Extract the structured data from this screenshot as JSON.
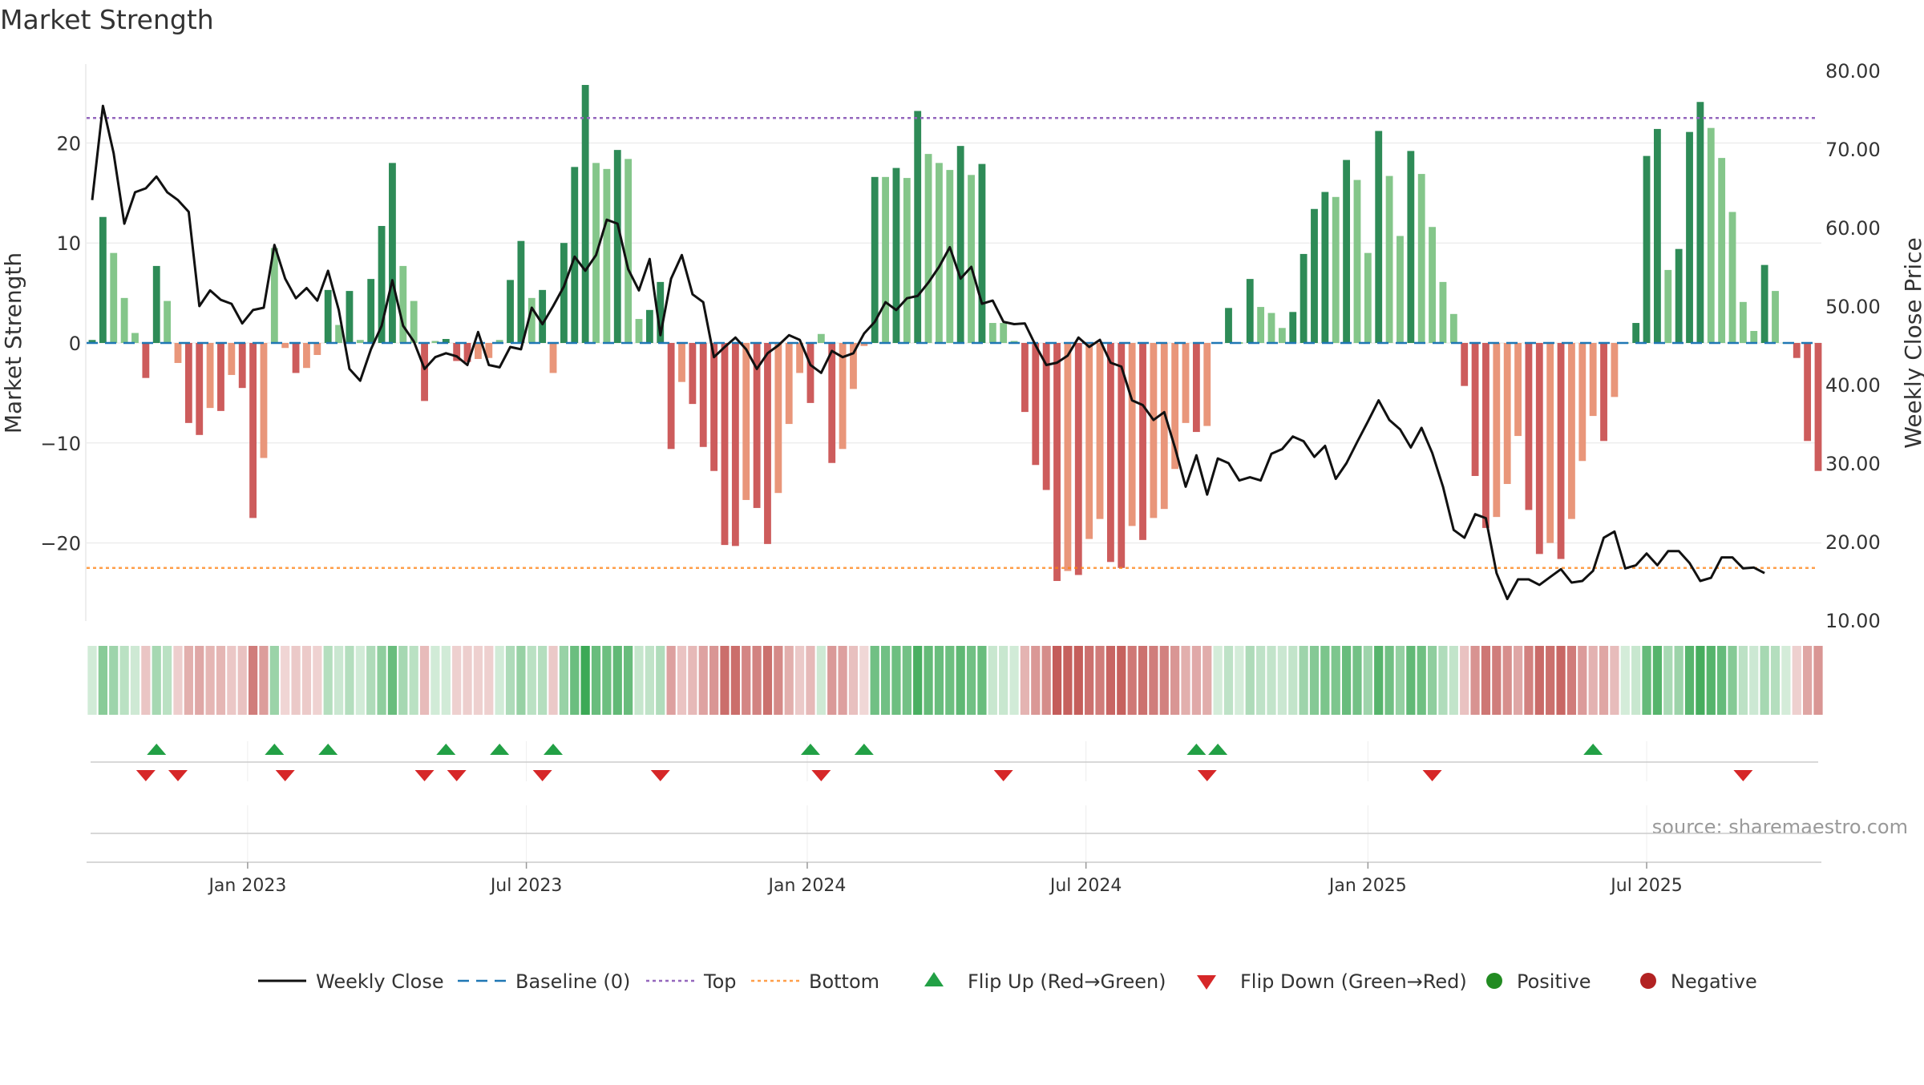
{
  "page_title": "Market Strength",
  "source_text": "source: sharemaestro.com",
  "colors": {
    "pos_strong": "#2e8b57",
    "pos_light": "#84c68a",
    "neg_strong": "#cd5c5c",
    "neg_light": "#e9967a",
    "close_line": "#111111",
    "baseline": "#1f77b4",
    "top_line": "#9467bd",
    "bottom_line": "#ff7f0e",
    "flip_up": "#22a045",
    "flip_down": "#d62728",
    "positive_dot": "#228b22",
    "negative_dot": "#b22222",
    "grid": "#e6e6e6"
  },
  "chart_data": {
    "type": "bar",
    "title": "Market Strength",
    "ylabel": "Market Strength",
    "y2label": "Weekly Close Price",
    "ylim": [
      -27.5,
      28
    ],
    "y2lim": [
      10,
      80
    ],
    "y_ticks": [
      20,
      10,
      0,
      -10,
      -20
    ],
    "y_tick_labels": [
      "20",
      "10",
      "0",
      "−10",
      "−20"
    ],
    "y2_ticks": [
      80,
      70,
      60,
      50,
      40,
      30,
      20,
      10
    ],
    "y2_tick_labels": [
      "80.00",
      "70.00",
      "60.00",
      "50.00",
      "40.00",
      "30.00",
      "20.00",
      "10.00"
    ],
    "top_level": 22.5,
    "bottom_level": -22.5,
    "x_tick_labels": [
      {
        "label": "Jan 2023",
        "week": 14.5
      },
      {
        "label": "Jul 2023",
        "week": 40.5
      },
      {
        "label": "Jan 2024",
        "week": 66.7
      },
      {
        "label": "Jul 2024",
        "week": 92.7
      },
      {
        "label": "Jan 2025",
        "week": 119
      },
      {
        "label": "Jul 2025",
        "week": 145
      }
    ],
    "strength": [
      0.3,
      12.6,
      9.0,
      4.5,
      1.0,
      -3.5,
      7.7,
      4.2,
      -2.0,
      -8.0,
      -9.2,
      -6.5,
      -6.8,
      -3.2,
      -4.5,
      -17.5,
      -11.5,
      9.5,
      -0.5,
      -3.0,
      -2.5,
      -1.2,
      5.3,
      1.8,
      5.2,
      0.3,
      6.4,
      11.7,
      18.0,
      7.7,
      4.2,
      -5.8,
      0.2,
      0.4,
      -1.8,
      -1.9,
      -1.6,
      -1.5,
      0.3,
      6.3,
      10.2,
      4.5,
      5.3,
      -3.0,
      10.0,
      17.6,
      25.8,
      18.0,
      17.4,
      19.3,
      18.4,
      2.4,
      3.3,
      6.1,
      -10.6,
      -3.9,
      -6.1,
      -10.4,
      -12.8,
      -20.2,
      -20.3,
      -15.7,
      -16.5,
      -20.1,
      -15.0,
      -8.1,
      -3.0,
      -6.0,
      0.9,
      -12.0,
      -10.6,
      -4.6,
      -0.3,
      16.6,
      16.6,
      17.5,
      16.5,
      23.2,
      18.9,
      18.0,
      17.3,
      19.7,
      16.8,
      17.9,
      2.0,
      2.0,
      0.2,
      -6.9,
      -12.2,
      -14.7,
      -23.8,
      -22.8,
      -23.2,
      -19.6,
      -17.6,
      -21.9,
      -22.5,
      -18.3,
      -19.7,
      -17.5,
      -16.6,
      -12.6,
      -8.0,
      -8.9,
      -8.3,
      0.1,
      3.5,
      0.1,
      6.4,
      3.6,
      3.0,
      1.5,
      3.1,
      8.9,
      13.4,
      15.1,
      14.6,
      18.3,
      16.3,
      9.0,
      21.2,
      16.7,
      10.7,
      19.2,
      16.9,
      11.6,
      6.1,
      2.9,
      -4.3,
      -13.3,
      -18.5,
      -17.4,
      -14.1,
      -9.3,
      -16.7,
      -21.1,
      -20.0,
      -21.6,
      -17.6,
      -11.8,
      -7.3,
      -9.8,
      -5.4,
      0.1,
      2.0,
      18.7,
      21.4,
      7.3,
      9.4,
      21.1,
      24.1,
      21.5,
      18.5,
      13.1,
      4.1,
      1.2,
      7.8,
      5.2,
      0.1,
      -1.5,
      -9.8,
      -12.8
    ],
    "close": [
      63.5,
      75.5,
      69.5,
      60.5,
      64.5,
      65.0,
      66.5,
      64.5,
      63.5,
      62.0,
      50.0,
      52.0,
      50.8,
      50.3,
      47.8,
      49.5,
      49.8,
      57.8,
      53.5,
      51.0,
      52.3,
      50.7,
      54.5,
      49.5,
      42.0,
      40.5,
      44.5,
      47.5,
      53.3,
      47.5,
      45.5,
      42.0,
      43.5,
      44.0,
      43.6,
      42.5,
      46.7,
      42.5,
      42.2,
      44.8,
      44.5,
      49.8,
      47.7,
      50.0,
      52.5,
      56.3,
      54.5,
      56.5,
      61.0,
      60.5,
      54.7,
      52.0,
      56.0,
      46.3,
      53.5,
      56.5,
      51.5,
      50.5,
      43.5,
      44.8,
      46.0,
      44.5,
      42.0,
      44.0,
      45.0,
      46.3,
      45.7,
      42.5,
      41.5,
      44.3,
      43.5,
      44.0,
      46.5,
      48.0,
      50.5,
      49.5,
      51.0,
      51.3,
      53.0,
      55.0,
      57.5,
      53.5,
      55.0,
      50.3,
      50.7,
      48.0,
      47.7,
      47.8,
      45.0,
      42.5,
      42.8,
      43.7,
      46.0,
      44.8,
      45.7,
      42.8,
      42.3,
      38.0,
      37.4,
      35.5,
      36.5,
      32.0,
      27.0,
      31.0,
      26.0,
      30.6,
      30.0,
      27.8,
      28.2,
      27.8,
      31.2,
      31.8,
      33.4,
      32.8,
      30.8,
      32.2,
      28.0,
      30.0,
      32.7,
      35.3,
      38.0,
      35.5,
      34.3,
      32.0,
      34.5,
      31.3,
      27.0,
      21.5,
      20.5,
      23.5,
      23.0,
      16.0,
      12.7,
      15.2,
      15.2,
      14.5,
      15.5,
      16.5,
      14.8,
      15.0,
      16.3,
      20.5,
      21.3,
      16.6,
      17.0,
      18.5,
      17.0,
      18.8,
      18.8,
      17.3,
      15.0,
      15.4,
      18.0,
      18.0,
      16.6,
      16.7,
      16.0
    ],
    "flip_up_weeks": [
      6,
      17,
      22,
      33,
      38,
      43,
      67,
      72,
      103,
      105,
      140
    ],
    "flip_down_weeks": [
      5,
      8,
      18,
      31,
      34,
      42,
      53,
      68,
      85,
      104,
      125,
      154
    ],
    "legend": [
      {
        "label": "Weekly Close",
        "kind": "line"
      },
      {
        "label": "Baseline (0)",
        "kind": "dash"
      },
      {
        "label": "Top",
        "kind": "dot-purple"
      },
      {
        "label": "Bottom",
        "kind": "dot-orange"
      },
      {
        "label": "Flip Up (Red→Green)",
        "kind": "tri-up"
      },
      {
        "label": "Flip Down (Green→Red)",
        "kind": "tri-down"
      },
      {
        "label": "Positive",
        "kind": "circle-pos"
      },
      {
        "label": "Negative",
        "kind": "circle-neg"
      }
    ]
  }
}
